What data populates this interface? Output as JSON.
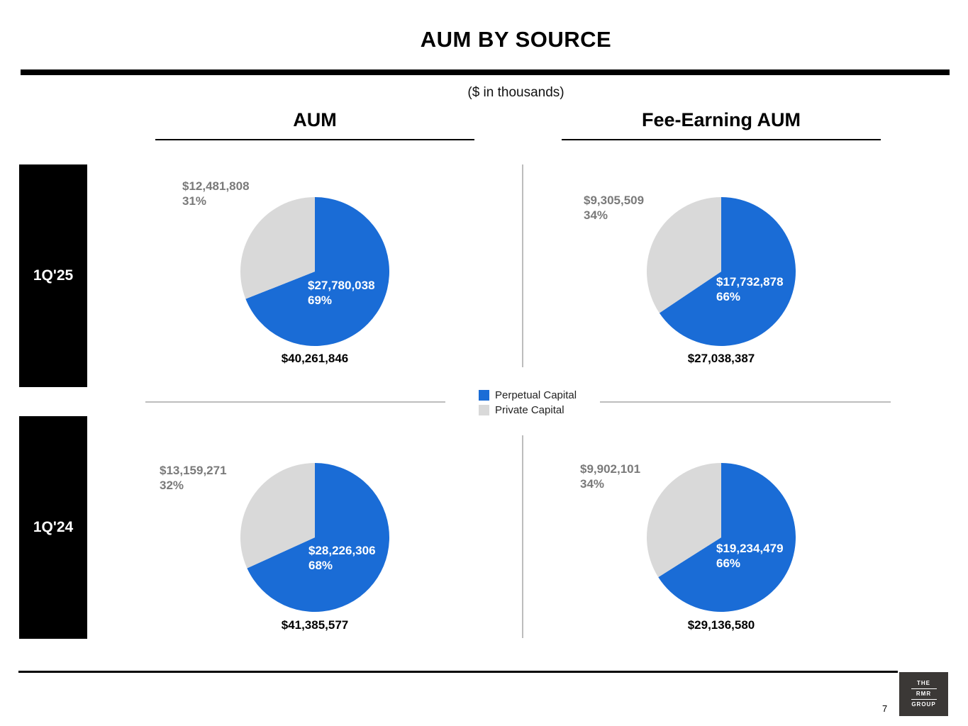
{
  "header": {
    "title": "AUM BY SOURCE",
    "subtitle": "($ in thousands)"
  },
  "columns": [
    "AUM",
    "Fee-Earning AUM"
  ],
  "rows": [
    "1Q'25",
    "1Q'24"
  ],
  "legend": [
    {
      "name": "Perpetual Capital",
      "color": "#1a6cd6"
    },
    {
      "name": "Private Capital",
      "color": "#d9d9d9"
    }
  ],
  "chart_data": [
    {
      "type": "pie",
      "period": "1Q'25",
      "measure": "AUM",
      "total": "$40,261,846",
      "slices": [
        {
          "name": "Perpetual Capital",
          "value": 27780038,
          "value_label": "$27,780,038",
          "pct_label": "69%",
          "color": "#1a6cd6"
        },
        {
          "name": "Private Capital",
          "value": 12481808,
          "value_label": "$12,481,808",
          "pct_label": "31%",
          "color": "#d9d9d9"
        }
      ]
    },
    {
      "type": "pie",
      "period": "1Q'25",
      "measure": "Fee-Earning AUM",
      "total": "$27,038,387",
      "slices": [
        {
          "name": "Perpetual Capital",
          "value": 17732878,
          "value_label": "$17,732,878",
          "pct_label": "66%",
          "color": "#1a6cd6"
        },
        {
          "name": "Private Capital",
          "value": 9305509,
          "value_label": "$9,305,509",
          "pct_label": "34%",
          "color": "#d9d9d9"
        }
      ]
    },
    {
      "type": "pie",
      "period": "1Q'24",
      "measure": "AUM",
      "total": "$41,385,577",
      "slices": [
        {
          "name": "Perpetual Capital",
          "value": 28226306,
          "value_label": "$28,226,306",
          "pct_label": "68%",
          "color": "#1a6cd6"
        },
        {
          "name": "Private Capital",
          "value": 13159271,
          "value_label": "$13,159,271",
          "pct_label": "32%",
          "color": "#d9d9d9"
        }
      ]
    },
    {
      "type": "pie",
      "period": "1Q'24",
      "measure": "Fee-Earning AUM",
      "total": "$29,136,580",
      "slices": [
        {
          "name": "Perpetual Capital",
          "value": 19234479,
          "value_label": "$19,234,479",
          "pct_label": "66%",
          "color": "#1a6cd6"
        },
        {
          "name": "Private Capital",
          "value": 9902101,
          "value_label": "$9,902,101",
          "pct_label": "34%",
          "color": "#d9d9d9"
        }
      ]
    }
  ],
  "logo": {
    "line1": "THE",
    "line2": "RMR",
    "line3": "GROUP"
  },
  "page_number": "7"
}
